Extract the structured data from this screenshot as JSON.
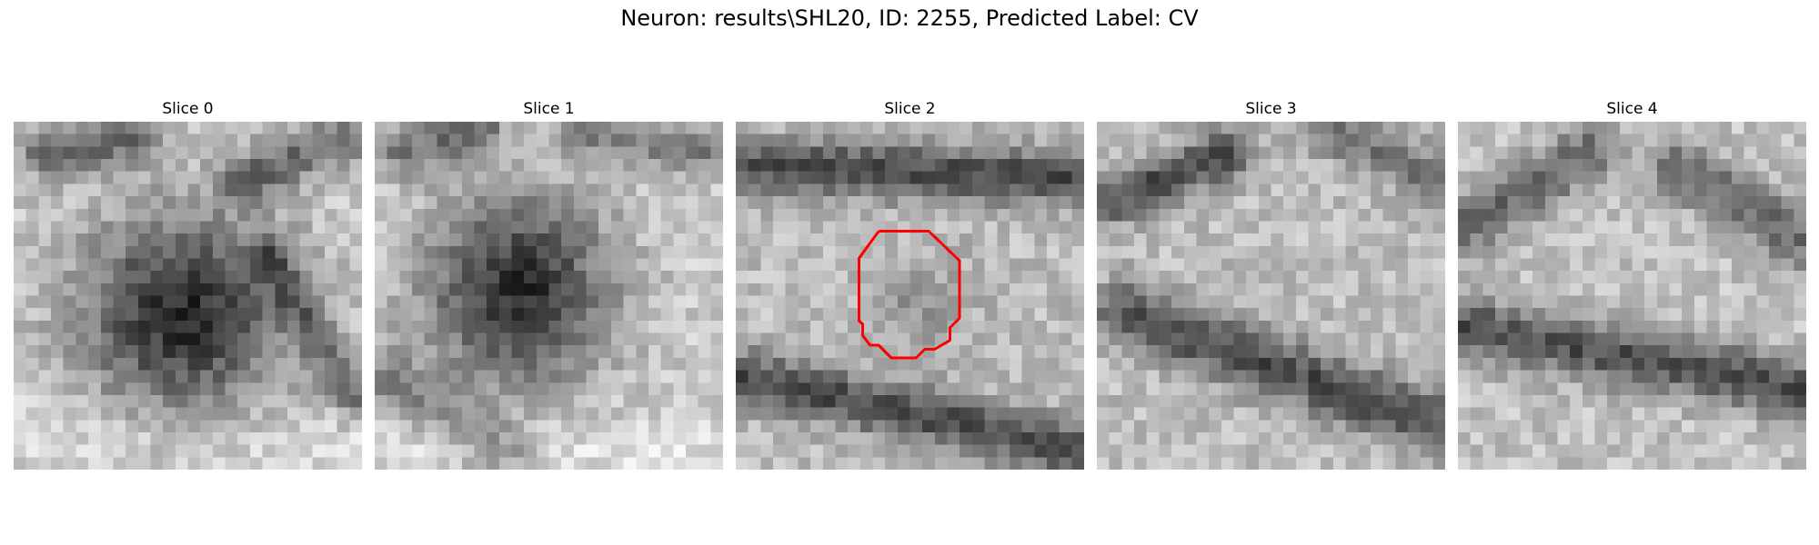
{
  "title": "Neuron: results\\SHL20, ID: 2255, Predicted Label: CV",
  "slices": [
    {
      "label": "Slice 0"
    },
    {
      "label": "Slice 1"
    },
    {
      "label": "Slice 2"
    },
    {
      "label": "Slice 3"
    },
    {
      "label": "Slice 4"
    }
  ],
  "contour": {
    "slice_index": 2,
    "color": "#ff0000"
  }
}
